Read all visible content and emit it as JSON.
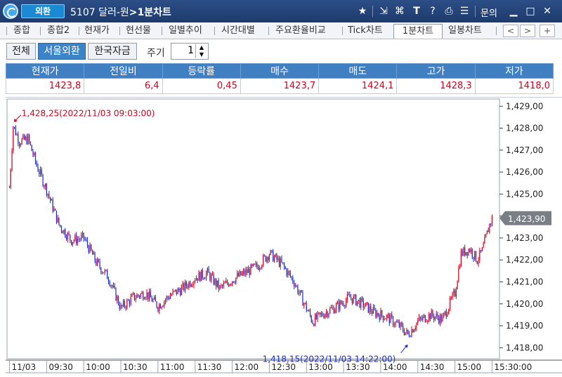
{
  "title_bar": {
    "app_name": "외환",
    "code": "5107",
    "name": "달러-원",
    "arrow": ">",
    "screen": "1분차트",
    "inquiry": "문의"
  },
  "tabs": [
    "종합",
    "종합2",
    "현재가",
    "현선물",
    "일별추이",
    "시간대별",
    "주요환율비교",
    "Tick차트",
    "1분차트",
    "일봉차트"
  ],
  "filters": {
    "buttons": [
      "전체",
      "서울외환",
      "한국자금"
    ],
    "active": "서울외환",
    "period_label": "주기",
    "period_value": "1"
  },
  "quote": {
    "headers": [
      "현재가",
      "전일비",
      "등락률",
      "매수",
      "매도",
      "고가",
      "저가"
    ],
    "values": [
      "1423,8",
      "6,4",
      "0,45",
      "1423,7",
      "1424,1",
      "1428,3",
      "1418,0"
    ]
  },
  "chart_data": {
    "type": "candlestick",
    "x_tick_labels": [
      "11/03",
      "09:30",
      "10:00",
      "10:30",
      "11:00",
      "11:30",
      "12:00",
      "12:30",
      "13:00",
      "13:30",
      "14:00",
      "14:30",
      "15:00",
      "15:30:00"
    ],
    "y_tick_labels": [
      "1,429,00",
      "1,428,00",
      "1,427,00",
      "1,426,00",
      "1,425,00",
      "1,424,00",
      "1,423,00",
      "1,422,00",
      "1,421,00",
      "1,420,00",
      "1,419,00",
      "1,418,00"
    ],
    "ylim": [
      1417.5,
      1429.2
    ],
    "current_price_label": "1,423,90",
    "current_price": 1423.9,
    "high_annotation": "1,428,25(2022/11/03 09:03:00)",
    "high": {
      "time": "09:03",
      "value": 1428.25
    },
    "low_annotation": "1,418,15(2022/11/03 14:22:00)",
    "low": {
      "time": "14:22",
      "value": 1418.15
    },
    "up_color": "#d0021b",
    "down_color": "#1a2fd0",
    "close_path": [
      {
        "t": "09:00",
        "v": 1425.3
      },
      {
        "t": "09:03",
        "v": 1428.1
      },
      {
        "t": "09:08",
        "v": 1427.4
      },
      {
        "t": "09:15",
        "v": 1427.5
      },
      {
        "t": "09:22",
        "v": 1426.3
      },
      {
        "t": "09:30",
        "v": 1425.2
      },
      {
        "t": "09:40",
        "v": 1423.6
      },
      {
        "t": "09:50",
        "v": 1422.9
      },
      {
        "t": "10:00",
        "v": 1423.0
      },
      {
        "t": "10:10",
        "v": 1421.9
      },
      {
        "t": "10:20",
        "v": 1421.2
      },
      {
        "t": "10:30",
        "v": 1419.8
      },
      {
        "t": "10:40",
        "v": 1420.3
      },
      {
        "t": "10:50",
        "v": 1420.5
      },
      {
        "t": "11:00",
        "v": 1419.9
      },
      {
        "t": "11:10",
        "v": 1420.4
      },
      {
        "t": "11:20",
        "v": 1420.7
      },
      {
        "t": "11:30",
        "v": 1421.2
      },
      {
        "t": "11:40",
        "v": 1421.4
      },
      {
        "t": "11:50",
        "v": 1420.7
      },
      {
        "t": "12:00",
        "v": 1421.1
      },
      {
        "t": "12:10",
        "v": 1421.4
      },
      {
        "t": "12:20",
        "v": 1421.7
      },
      {
        "t": "12:30",
        "v": 1422.3
      },
      {
        "t": "12:40",
        "v": 1421.8
      },
      {
        "t": "12:50",
        "v": 1421.0
      },
      {
        "t": "13:00",
        "v": 1419.8
      },
      {
        "t": "13:05",
        "v": 1419.2
      },
      {
        "t": "13:15",
        "v": 1419.6
      },
      {
        "t": "13:25",
        "v": 1419.9
      },
      {
        "t": "13:35",
        "v": 1420.3
      },
      {
        "t": "13:45",
        "v": 1420.0
      },
      {
        "t": "13:55",
        "v": 1419.6
      },
      {
        "t": "14:05",
        "v": 1419.4
      },
      {
        "t": "14:15",
        "v": 1419.0
      },
      {
        "t": "14:22",
        "v": 1418.6
      },
      {
        "t": "14:30",
        "v": 1419.2
      },
      {
        "t": "14:40",
        "v": 1419.5
      },
      {
        "t": "14:50",
        "v": 1419.3
      },
      {
        "t": "15:00",
        "v": 1420.5
      },
      {
        "t": "15:05",
        "v": 1422.3
      },
      {
        "t": "15:12",
        "v": 1422.5
      },
      {
        "t": "15:18",
        "v": 1422.0
      },
      {
        "t": "15:22",
        "v": 1422.4
      },
      {
        "t": "15:28",
        "v": 1423.6
      },
      {
        "t": "15:30",
        "v": 1423.9
      }
    ]
  }
}
